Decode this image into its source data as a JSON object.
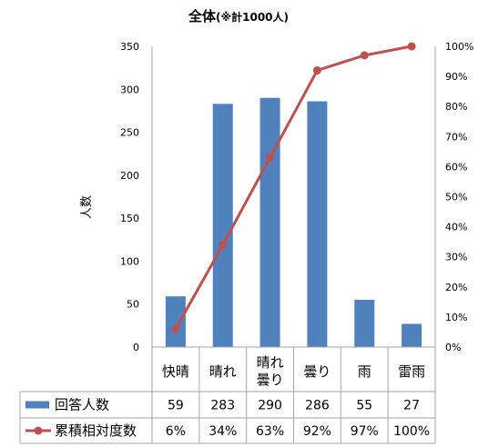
{
  "chart_data": {
    "type": "bar",
    "title": "全体",
    "subtitle": "(※計1000人)",
    "ylabel": "人数",
    "categories": [
      {
        "label": "快晴",
        "lines": [
          "快晴"
        ]
      },
      {
        "label": "晴れ",
        "lines": [
          "晴れ"
        ]
      },
      {
        "label": "晴れ曇り",
        "lines": [
          "晴れ",
          "曇り"
        ]
      },
      {
        "label": "曇り",
        "lines": [
          "曇り"
        ]
      },
      {
        "label": "雨",
        "lines": [
          "雨"
        ]
      },
      {
        "label": "雷雨",
        "lines": [
          "雷雨"
        ]
      }
    ],
    "ylim": [
      0,
      350
    ],
    "y_ticks": [
      "0",
      "50",
      "100",
      "150",
      "200",
      "250",
      "300",
      "350"
    ],
    "y2lim": [
      0,
      1
    ],
    "y2_ticks": [
      "0%",
      "10%",
      "20%",
      "30%",
      "40%",
      "50%",
      "60%",
      "70%",
      "80%",
      "90%",
      "100%"
    ],
    "series": [
      {
        "name": "回答人数",
        "kind": "bar",
        "axis": "left",
        "color": "#4F81BD",
        "values": [
          59,
          283,
          290,
          286,
          55,
          27
        ],
        "labels": [
          "59",
          "283",
          "290",
          "286",
          "55",
          "27"
        ]
      },
      {
        "name": "累積相対度数",
        "kind": "line",
        "axis": "right",
        "color": "#C0504D",
        "values": [
          0.06,
          0.34,
          0.63,
          0.92,
          0.97,
          1.0
        ],
        "labels": [
          "6%",
          "34%",
          "63%",
          "92%",
          "97%",
          "100%"
        ]
      }
    ],
    "grid": false,
    "legend": "data-table"
  }
}
